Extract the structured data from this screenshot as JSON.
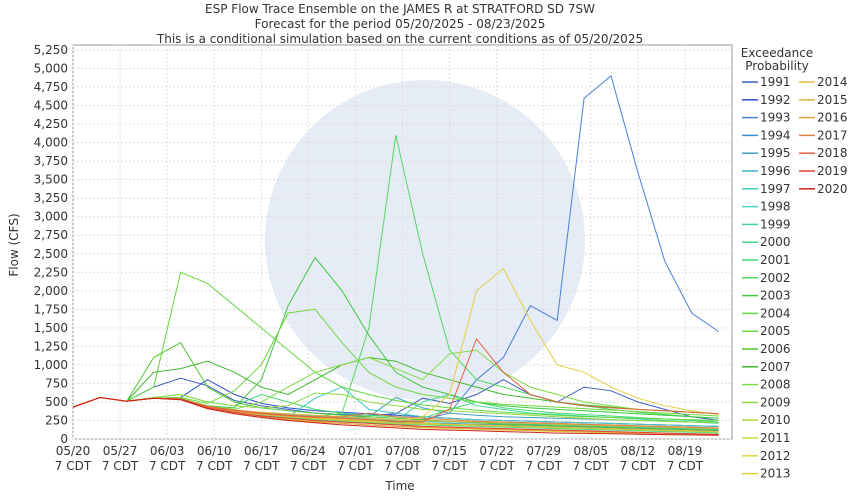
{
  "chart_data": {
    "type": "line",
    "title": [
      "ESP Flow Trace Ensemble on the JAMES R at STRATFORD SD 7SW",
      "Forecast for the period 05/20/2025 - 08/23/2025",
      "This is a conditional simulation based on the current conditions as of 05/20/2025"
    ],
    "x_label": "Time",
    "y_label": "Flow (CFS)",
    "legend_title": [
      "Exceedance",
      "Probability"
    ],
    "grid": true,
    "x": [
      "05/20",
      "05/24",
      "05/28",
      "06/01",
      "06/05",
      "06/09",
      "06/13",
      "06/17",
      "06/21",
      "06/25",
      "06/29",
      "07/03",
      "07/07",
      "07/11",
      "07/15",
      "07/19",
      "07/23",
      "07/27",
      "07/31",
      "08/04",
      "08/08",
      "08/12",
      "08/16",
      "08/20",
      "08/24"
    ],
    "xlim": [
      "05/20",
      "08/26"
    ],
    "xticks": [
      {
        "value": "05/20",
        "label": [
          "05/20",
          "7 CDT"
        ]
      },
      {
        "value": "05/27",
        "label": [
          "05/27",
          "7 CDT"
        ]
      },
      {
        "value": "06/03",
        "label": [
          "06/03",
          "7 CDT"
        ]
      },
      {
        "value": "06/10",
        "label": [
          "06/10",
          "7 CDT"
        ]
      },
      {
        "value": "06/17",
        "label": [
          "06/17",
          "7 CDT"
        ]
      },
      {
        "value": "06/24",
        "label": [
          "06/24",
          "7 CDT"
        ]
      },
      {
        "value": "07/01",
        "label": [
          "07/01",
          "7 CDT"
        ]
      },
      {
        "value": "07/08",
        "label": [
          "07/08",
          "7 CDT"
        ]
      },
      {
        "value": "07/15",
        "label": [
          "07/15",
          "7 CDT"
        ]
      },
      {
        "value": "07/22",
        "label": [
          "07/22",
          "7 CDT"
        ]
      },
      {
        "value": "07/29",
        "label": [
          "07/29",
          "7 CDT"
        ]
      },
      {
        "value": "08/05",
        "label": [
          "08/05",
          "7 CDT"
        ]
      },
      {
        "value": "08/12",
        "label": [
          "08/12",
          "7 CDT"
        ]
      },
      {
        "value": "08/19",
        "label": [
          "08/19",
          "7 CDT"
        ]
      }
    ],
    "ylim": [
      0,
      5250
    ],
    "yticks": [
      0,
      250,
      500,
      750,
      {
        "value": 1000,
        "label": "1,000"
      },
      {
        "value": 1250,
        "label": "1,250"
      },
      {
        "value": 1500,
        "label": "1,500"
      },
      {
        "value": 1750,
        "label": "1,750"
      },
      {
        "value": 2000,
        "label": "2,000"
      },
      {
        "value": 2250,
        "label": "2,250"
      },
      {
        "value": 2500,
        "label": "2,500"
      },
      {
        "value": 2750,
        "label": "2,750"
      },
      {
        "value": 3000,
        "label": "3,000"
      },
      {
        "value": 3250,
        "label": "3,250"
      },
      {
        "value": 3500,
        "label": "3,500"
      },
      {
        "value": 3750,
        "label": "3,750"
      },
      {
        "value": 4000,
        "label": "4,000"
      },
      {
        "value": 4250,
        "label": "4,250"
      },
      {
        "value": 4500,
        "label": "4,500"
      },
      {
        "value": 4750,
        "label": "4,750"
      },
      {
        "value": 5000,
        "label": "5,000"
      },
      {
        "value": 5250,
        "label": "5,250"
      }
    ],
    "series": [
      {
        "name": "1991",
        "color": "#4060c0",
        "values": [
          430,
          560,
          510,
          700,
          820,
          720,
          520,
          450,
          400,
          350,
          330,
          320,
          340,
          550,
          480,
          600,
          800,
          600,
          500,
          700,
          650,
          500,
          400,
          300,
          250
        ]
      },
      {
        "name": "1992",
        "color": "#3050d0",
        "values": [
          430,
          560,
          510,
          550,
          560,
          800,
          600,
          480,
          420,
          380,
          360,
          340,
          320,
          300,
          280,
          260,
          250,
          240,
          230,
          220,
          210,
          200,
          190,
          180,
          170
        ]
      },
      {
        "name": "1993",
        "color": "#4a7fd8",
        "values": [
          430,
          560,
          510,
          550,
          550,
          430,
          380,
          340,
          310,
          290,
          270,
          260,
          250,
          260,
          350,
          800,
          1100,
          1800,
          1600,
          4600,
          4900,
          3600,
          2400,
          1700,
          1450
        ]
      },
      {
        "name": "1994",
        "color": "#3a8ec8",
        "values": [
          430,
          560,
          510,
          550,
          540,
          420,
          370,
          330,
          300,
          280,
          260,
          240,
          230,
          220,
          210,
          200,
          190,
          180,
          170,
          160,
          150,
          140,
          130,
          120,
          110
        ]
      },
      {
        "name": "1995",
        "color": "#40a0c0",
        "values": [
          430,
          560,
          510,
          550,
          540,
          430,
          380,
          350,
          320,
          300,
          290,
          300,
          560,
          420,
          350,
          320,
          300,
          290,
          280,
          270,
          260,
          250,
          240,
          230,
          220
        ]
      },
      {
        "name": "1996",
        "color": "#40b8c8",
        "values": [
          430,
          560,
          510,
          550,
          540,
          420,
          360,
          320,
          290,
          270,
          250,
          230,
          210,
          200,
          190,
          180,
          170,
          160,
          150,
          140,
          130,
          120,
          110,
          100,
          90
        ]
      },
      {
        "name": "1997",
        "color": "#40c8c0",
        "values": [
          430,
          560,
          510,
          550,
          540,
          420,
          370,
          330,
          300,
          550,
          700,
          400,
          350,
          300,
          280,
          260,
          250,
          240,
          230,
          220,
          210,
          200,
          190,
          180,
          170
        ]
      },
      {
        "name": "1998",
        "color": "#40d8b8",
        "values": [
          430,
          560,
          510,
          550,
          540,
          440,
          390,
          350,
          330,
          310,
          290,
          270,
          250,
          240,
          230,
          220,
          210,
          200,
          190,
          180,
          170,
          160,
          150,
          140,
          130
        ]
      },
      {
        "name": "1999",
        "color": "#40d8a0",
        "values": [
          430,
          560,
          510,
          550,
          540,
          420,
          380,
          340,
          320,
          300,
          280,
          260,
          250,
          500,
          600,
          450,
          400,
          350,
          330,
          310,
          290,
          270,
          250,
          230,
          210
        ]
      },
      {
        "name": "2000",
        "color": "#40d890",
        "values": [
          430,
          560,
          510,
          550,
          540,
          410,
          360,
          320,
          290,
          260,
          240,
          220,
          200,
          190,
          180,
          170,
          160,
          150,
          140,
          130,
          120,
          110,
          100,
          90,
          80
        ]
      },
      {
        "name": "2001",
        "color": "#40d878",
        "values": [
          430,
          560,
          510,
          560,
          600,
          500,
          450,
          600,
          500,
          400,
          350,
          320,
          300,
          280,
          400,
          500,
          420,
          380,
          350,
          330,
          310,
          290,
          270,
          250,
          230
        ]
      },
      {
        "name": "2002",
        "color": "#50d860",
        "values": [
          430,
          560,
          510,
          550,
          540,
          440,
          390,
          350,
          320,
          300,
          350,
          1500,
          4100,
          2500,
          1200,
          800,
          700,
          600,
          500,
          450,
          400,
          360,
          330,
          300,
          280
        ]
      },
      {
        "name": "2003",
        "color": "#40c840",
        "values": [
          430,
          560,
          510,
          550,
          540,
          450,
          420,
          800,
          1800,
          2450,
          2000,
          1400,
          900,
          700,
          600,
          500,
          450,
          420,
          400,
          380,
          360,
          340,
          320,
          300,
          280
        ]
      },
      {
        "name": "2004",
        "color": "#60d840",
        "values": [
          430,
          560,
          510,
          700,
          2250,
          2100,
          1800,
          1500,
          1200,
          900,
          700,
          600,
          520,
          460,
          420,
          390,
          360,
          340,
          320,
          300,
          290,
          280,
          270,
          260,
          250
        ]
      },
      {
        "name": "2005",
        "color": "#70d840",
        "values": [
          430,
          560,
          510,
          550,
          560,
          480,
          650,
          1000,
          1700,
          1750,
          1300,
          900,
          700,
          600,
          550,
          500,
          470,
          450,
          430,
          410,
          390,
          370,
          350,
          330,
          310
        ]
      },
      {
        "name": "2006",
        "color": "#50c830",
        "values": [
          430,
          560,
          510,
          1100,
          1300,
          700,
          500,
          420,
          380,
          350,
          320,
          300,
          280,
          260,
          240,
          220,
          200,
          190,
          180,
          170,
          160,
          150,
          140,
          130,
          120
        ]
      },
      {
        "name": "2007",
        "color": "#40b830",
        "values": [
          430,
          560,
          510,
          900,
          950,
          1050,
          900,
          700,
          600,
          800,
          1000,
          1100,
          1050,
          900,
          800,
          700,
          600,
          550,
          500,
          460,
          430,
          400,
          380,
          360,
          340
        ]
      },
      {
        "name": "2008",
        "color": "#80d840",
        "values": [
          430,
          560,
          510,
          550,
          550,
          450,
          400,
          500,
          700,
          900,
          1000,
          1100,
          950,
          800,
          1150,
          1200,
          900,
          700,
          600,
          500,
          450,
          400,
          380,
          360,
          340
        ]
      },
      {
        "name": "2009",
        "color": "#90d840",
        "values": [
          430,
          560,
          510,
          560,
          600,
          500,
          450,
          420,
          450,
          620,
          600,
          500,
          450,
          400,
          380,
          360,
          340,
          320,
          300,
          280,
          260,
          250,
          240,
          230,
          220
        ]
      },
      {
        "name": "2010",
        "color": "#b0d840",
        "values": [
          430,
          560,
          510,
          550,
          540,
          430,
          380,
          340,
          300,
          270,
          250,
          230,
          210,
          200,
          190,
          180,
          170,
          160,
          150,
          140,
          130,
          120,
          110,
          100,
          90
        ]
      },
      {
        "name": "2011",
        "color": "#c8d840",
        "values": [
          430,
          560,
          510,
          550,
          540,
          440,
          390,
          350,
          320,
          300,
          280,
          260,
          240,
          220,
          200,
          190,
          180,
          170,
          160,
          150,
          140,
          130,
          120,
          110,
          100
        ]
      },
      {
        "name": "2012",
        "color": "#d8d840",
        "values": [
          430,
          560,
          510,
          550,
          530,
          420,
          360,
          310,
          270,
          240,
          210,
          190,
          170,
          150,
          140,
          130,
          120,
          110,
          100,
          90,
          80,
          70,
          60,
          55,
          50
        ]
      },
      {
        "name": "2013",
        "color": "#e0d040",
        "values": [
          430,
          560,
          510,
          550,
          540,
          430,
          380,
          340,
          310,
          290,
          270,
          250,
          240,
          300,
          600,
          2000,
          2300,
          1600,
          1000,
          900,
          700,
          550,
          450,
          380,
          330
        ]
      },
      {
        "name": "2014",
        "color": "#e0c040",
        "values": [
          430,
          560,
          510,
          550,
          540,
          420,
          370,
          330,
          300,
          280,
          260,
          240,
          220,
          210,
          200,
          190,
          180,
          170,
          160,
          150,
          140,
          130,
          120,
          110,
          100
        ]
      },
      {
        "name": "2015",
        "color": "#e0b040",
        "values": [
          430,
          560,
          510,
          550,
          540,
          430,
          390,
          360,
          340,
          320,
          300,
          280,
          260,
          250,
          240,
          230,
          220,
          210,
          200,
          190,
          180,
          170,
          160,
          150,
          140
        ]
      },
      {
        "name": "2016",
        "color": "#e0a040",
        "values": [
          430,
          560,
          510,
          550,
          530,
          410,
          350,
          300,
          260,
          230,
          210,
          190,
          170,
          160,
          150,
          140,
          130,
          120,
          110,
          100,
          90,
          80,
          75,
          70,
          65
        ]
      },
      {
        "name": "2017",
        "color": "#e08040",
        "values": [
          430,
          560,
          510,
          550,
          540,
          430,
          380,
          340,
          310,
          290,
          300,
          350,
          300,
          280,
          260,
          240,
          230,
          220,
          210,
          200,
          190,
          180,
          170,
          160,
          150
        ]
      },
      {
        "name": "2018",
        "color": "#e06040",
        "values": [
          430,
          560,
          510,
          550,
          540,
          440,
          390,
          350,
          320,
          300,
          280,
          260,
          240,
          230,
          400,
          1350,
          900,
          600,
          500,
          450,
          420,
          400,
          380,
          360,
          340
        ]
      },
      {
        "name": "2019",
        "color": "#e04030",
        "values": [
          430,
          560,
          510,
          550,
          540,
          420,
          360,
          310,
          280,
          250,
          230,
          210,
          190,
          170,
          160,
          150,
          140,
          130,
          120,
          110,
          100,
          90,
          80,
          70,
          60
        ]
      },
      {
        "name": "2020",
        "color": "#d02020",
        "values": [
          430,
          560,
          510,
          550,
          530,
          410,
          340,
          290,
          250,
          220,
          190,
          170,
          150,
          130,
          120,
          110,
          100,
          90,
          80,
          75,
          70,
          65,
          60,
          55,
          50
        ]
      }
    ]
  }
}
